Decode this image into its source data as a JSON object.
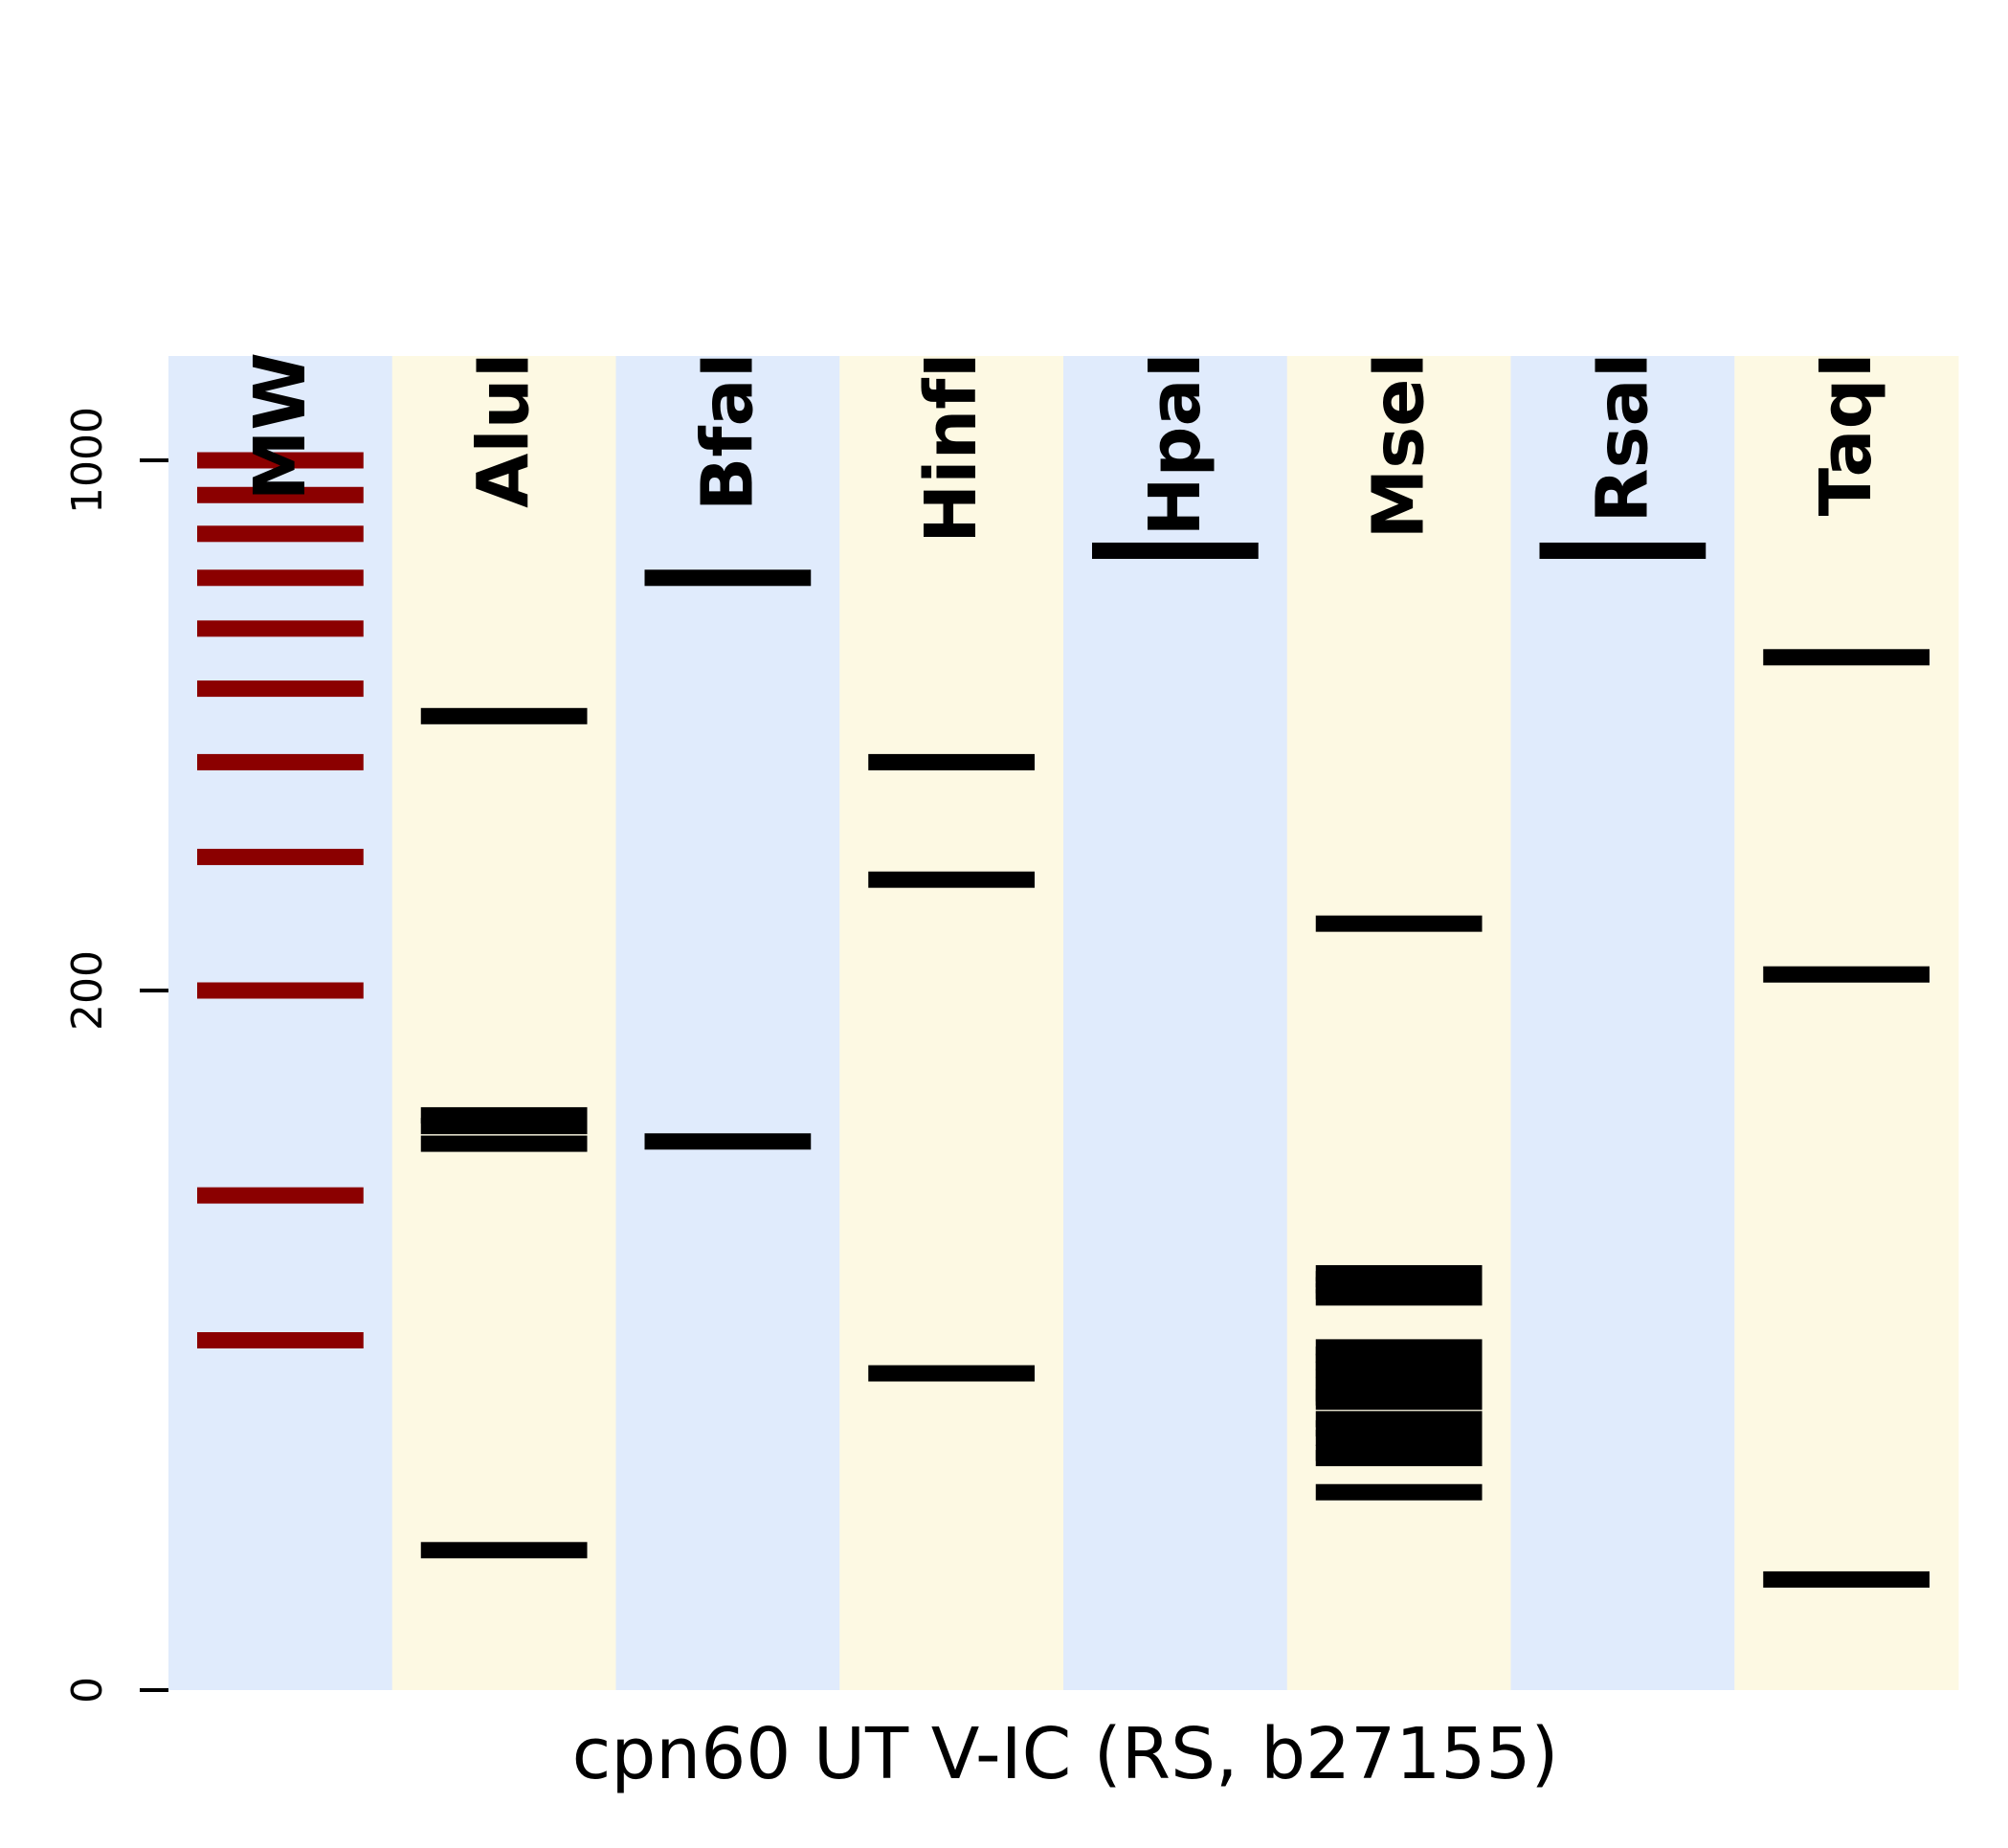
{
  "chart_data": {
    "type": "gel",
    "xlabel": "cpn60 UT V-IC (RS, b27155)",
    "y_ticks": [
      {
        "label": "1000",
        "value": 1000
      },
      {
        "label": "200",
        "value": 200
      },
      {
        "label": "0",
        "value": 0
      }
    ],
    "lane_colors": [
      "#e0ebfc",
      "#fdf9e3"
    ],
    "marker_color": "#8b0000",
    "band_color": "#000000",
    "lanes": [
      {
        "name": "MW",
        "is_marker": true,
        "bands": [
          1000,
          900,
          800,
          700,
          600,
          500,
          400,
          300,
          200,
          100,
          50
        ]
      },
      {
        "name": "AluI",
        "bands": [
          460,
          135,
          130,
          122,
          8
        ]
      },
      {
        "name": "BfaI",
        "bands": [
          700,
          123
        ]
      },
      {
        "name": "HinfI",
        "bands": [
          400,
          280,
          41
        ]
      },
      {
        "name": "HpaI",
        "bands": [
          760
        ]
      },
      {
        "name": "MseI",
        "bands": [
          245,
          71,
          69,
          67,
          65,
          63,
          48,
          46,
          44,
          42,
          40,
          38,
          36,
          35,
          34,
          30,
          28,
          26,
          23,
          22,
          16
        ]
      },
      {
        "name": "RsaI",
        "bands": [
          760
        ]
      },
      {
        "name": "TaqI",
        "bands": [
          550,
          210,
          5
        ]
      }
    ]
  }
}
